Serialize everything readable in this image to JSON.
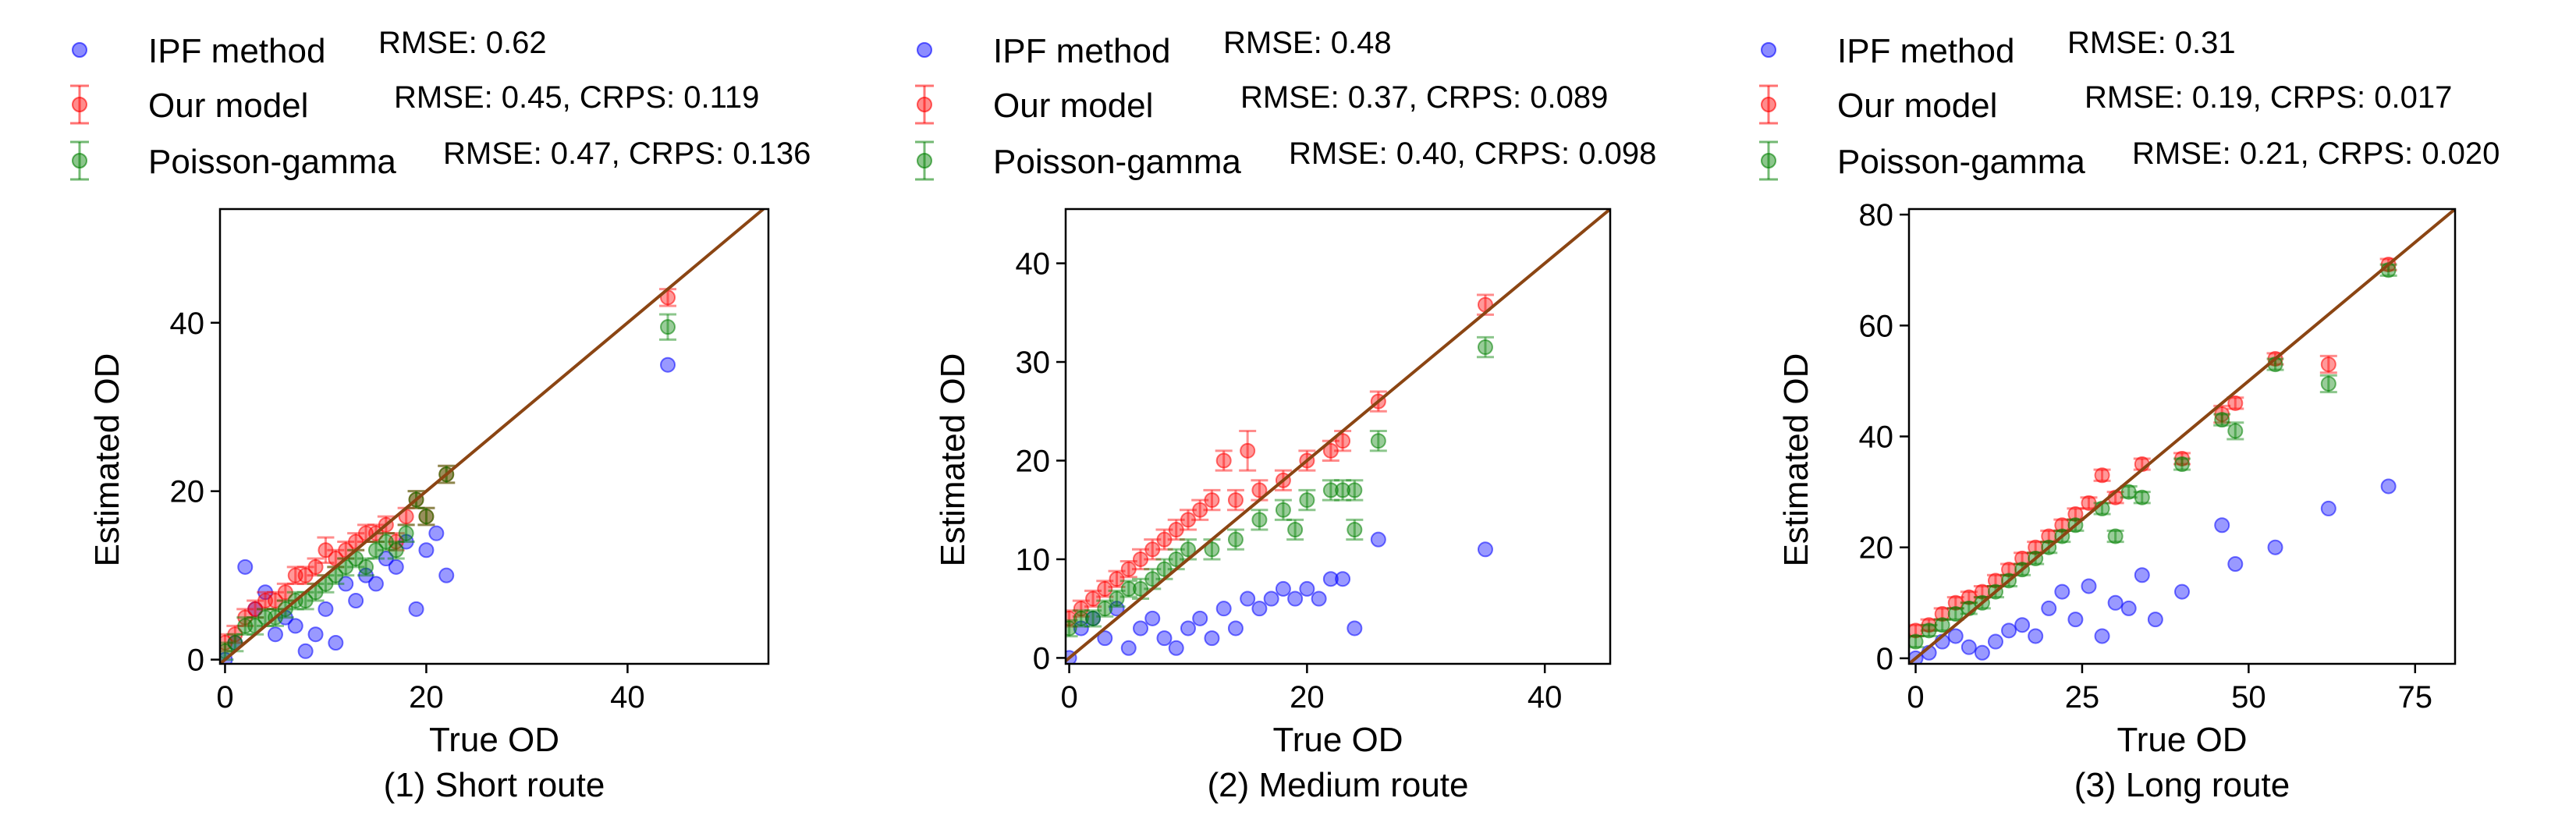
{
  "colors": {
    "ipf": "#0000ff",
    "ours": "#ff0000",
    "pg": "#008000",
    "diag": "#8b4513",
    "axis": "#000000"
  },
  "chart_data": [
    {
      "type": "scatter",
      "caption": "(1) Short route",
      "xlabel": "True OD",
      "ylabel": "Estimated OD",
      "xlim": [
        -0.5,
        54
      ],
      "ylim": [
        -0.5,
        53.5
      ],
      "xticks": [
        0,
        20,
        40
      ],
      "yticks": [
        0,
        20,
        40
      ],
      "legend": [
        {
          "name": "IPF method",
          "metric": "RMSE: 0.62"
        },
        {
          "name": "Our model",
          "metric": "RMSE: 0.45, CRPS: 0.119"
        },
        {
          "name": "Poisson-gamma",
          "metric": "RMSE: 0.47, CRPS: 0.136"
        }
      ],
      "series": [
        {
          "name": "IPF method",
          "points": [
            [
              0,
              0
            ],
            [
              1,
              2
            ],
            [
              2,
              11
            ],
            [
              3,
              6
            ],
            [
              4,
              8
            ],
            [
              5,
              3
            ],
            [
              6,
              5
            ],
            [
              7,
              4
            ],
            [
              8,
              1
            ],
            [
              9,
              3
            ],
            [
              10,
              6
            ],
            [
              11,
              2
            ],
            [
              12,
              9
            ],
            [
              13,
              7
            ],
            [
              14,
              10
            ],
            [
              15,
              9
            ],
            [
              16,
              12
            ],
            [
              17,
              11
            ],
            [
              18,
              14
            ],
            [
              19,
              6
            ],
            [
              20,
              13
            ],
            [
              21,
              15
            ],
            [
              22,
              10
            ],
            [
              44,
              35
            ]
          ]
        },
        {
          "name": "Our model",
          "points": [
            [
              0,
              2,
              1
            ],
            [
              1,
              3,
              1
            ],
            [
              2,
              5,
              1
            ],
            [
              3,
              6,
              1
            ],
            [
              4,
              7,
              1
            ],
            [
              5,
              7,
              1
            ],
            [
              6,
              8,
              1
            ],
            [
              7,
              10,
              1
            ],
            [
              8,
              10,
              1
            ],
            [
              9,
              11,
              1
            ],
            [
              10,
              13,
              1.5
            ],
            [
              11,
              12,
              1
            ],
            [
              12,
              13,
              1
            ],
            [
              13,
              14,
              1
            ],
            [
              14,
              15,
              1
            ],
            [
              15,
              15,
              1
            ],
            [
              16,
              16,
              1
            ],
            [
              17,
              14,
              1
            ],
            [
              18,
              17,
              1
            ],
            [
              19,
              19,
              1
            ],
            [
              20,
              17,
              1
            ],
            [
              22,
              22,
              1
            ],
            [
              44,
              43,
              1
            ]
          ]
        },
        {
          "name": "Poisson-gamma",
          "points": [
            [
              0,
              1,
              1
            ],
            [
              1,
              2,
              1
            ],
            [
              2,
              4,
              1
            ],
            [
              3,
              4,
              1
            ],
            [
              4,
              5,
              1
            ],
            [
              5,
              5,
              1
            ],
            [
              6,
              6,
              1
            ],
            [
              7,
              7,
              1
            ],
            [
              8,
              7,
              1
            ],
            [
              9,
              8,
              1
            ],
            [
              10,
              9,
              1
            ],
            [
              11,
              10,
              1
            ],
            [
              12,
              11,
              1
            ],
            [
              13,
              12,
              1
            ],
            [
              14,
              11,
              1
            ],
            [
              15,
              13,
              1
            ],
            [
              16,
              14,
              1
            ],
            [
              17,
              13,
              1
            ],
            [
              18,
              15,
              1
            ],
            [
              19,
              19,
              1
            ],
            [
              20,
              17,
              1
            ],
            [
              22,
              22,
              1
            ],
            [
              44,
              39.5,
              1.5
            ]
          ]
        }
      ]
    },
    {
      "type": "scatter",
      "caption": "(2) Medium route",
      "xlabel": "True OD",
      "ylabel": "Estimated OD",
      "xlim": [
        -0.3,
        45.5
      ],
      "ylim": [
        -0.6,
        45.5
      ],
      "xticks": [
        0,
        20,
        40
      ],
      "yticks": [
        0,
        10,
        20,
        30,
        40
      ],
      "legend": [
        {
          "name": "IPF method",
          "metric": "RMSE: 0.48"
        },
        {
          "name": "Our model",
          "metric": "RMSE: 0.37, CRPS: 0.089"
        },
        {
          "name": "Poisson-gamma",
          "metric": "RMSE: 0.40, CRPS: 0.098"
        }
      ],
      "series": [
        {
          "name": "IPF method",
          "points": [
            [
              0,
              0
            ],
            [
              1,
              3
            ],
            [
              2,
              4
            ],
            [
              3,
              2
            ],
            [
              4,
              5
            ],
            [
              5,
              1
            ],
            [
              6,
              3
            ],
            [
              7,
              4
            ],
            [
              8,
              2
            ],
            [
              9,
              1
            ],
            [
              10,
              3
            ],
            [
              11,
              4
            ],
            [
              12,
              2
            ],
            [
              13,
              5
            ],
            [
              14,
              3
            ],
            [
              15,
              6
            ],
            [
              16,
              5
            ],
            [
              17,
              6
            ],
            [
              18,
              7
            ],
            [
              19,
              6
            ],
            [
              20,
              7
            ],
            [
              21,
              6
            ],
            [
              22,
              8
            ],
            [
              23,
              8
            ],
            [
              24,
              3
            ],
            [
              26,
              12
            ],
            [
              35,
              11
            ]
          ]
        },
        {
          "name": "Our model",
          "points": [
            [
              0,
              4,
              0.8
            ],
            [
              1,
              5,
              0.8
            ],
            [
              2,
              6,
              0.8
            ],
            [
              3,
              7,
              0.8
            ],
            [
              4,
              8,
              0.8
            ],
            [
              5,
              9,
              0.8
            ],
            [
              6,
              10,
              1
            ],
            [
              7,
              11,
              1
            ],
            [
              8,
              12,
              1
            ],
            [
              9,
              13,
              1
            ],
            [
              10,
              14,
              1
            ],
            [
              11,
              15,
              1
            ],
            [
              12,
              16,
              1
            ],
            [
              13,
              20,
              1
            ],
            [
              15,
              21,
              2
            ],
            [
              14,
              16,
              1
            ],
            [
              16,
              17,
              1
            ],
            [
              18,
              18,
              1
            ],
            [
              20,
              20,
              1
            ],
            [
              22,
              21,
              1
            ],
            [
              23,
              22,
              1
            ],
            [
              26,
              26,
              1
            ],
            [
              35,
              35.8,
              1
            ]
          ]
        },
        {
          "name": "Poisson-gamma",
          "points": [
            [
              0,
              3,
              0.8
            ],
            [
              1,
              4,
              0.8
            ],
            [
              2,
              4,
              0.8
            ],
            [
              3,
              5,
              0.8
            ],
            [
              4,
              6,
              0.8
            ],
            [
              5,
              7,
              0.8
            ],
            [
              6,
              7,
              1
            ],
            [
              7,
              8,
              1
            ],
            [
              8,
              9,
              1
            ],
            [
              9,
              10,
              1
            ],
            [
              10,
              11,
              1
            ],
            [
              12,
              11,
              1
            ],
            [
              14,
              12,
              1
            ],
            [
              16,
              14,
              1
            ],
            [
              18,
              15,
              1
            ],
            [
              19,
              13,
              1
            ],
            [
              20,
              16,
              1
            ],
            [
              22,
              17,
              1
            ],
            [
              23,
              17,
              1
            ],
            [
              24,
              13,
              1
            ],
            [
              24,
              17,
              1
            ],
            [
              26,
              22,
              1
            ],
            [
              35,
              31.5,
              1
            ]
          ]
        }
      ]
    },
    {
      "type": "scatter",
      "caption": "(3) Long route",
      "xlabel": "True OD",
      "ylabel": "Estimated OD",
      "xlim": [
        -1,
        81
      ],
      "ylim": [
        -1,
        81
      ],
      "xticks": [
        0,
        25,
        50,
        75
      ],
      "yticks": [
        0,
        20,
        40,
        60,
        80
      ],
      "legend": [
        {
          "name": "IPF method",
          "metric": "RMSE: 0.31"
        },
        {
          "name": "Our model",
          "metric": "RMSE: 0.19, CRPS: 0.017"
        },
        {
          "name": "Poisson-gamma",
          "metric": "RMSE: 0.21, CRPS: 0.020"
        }
      ],
      "series": [
        {
          "name": "IPF method",
          "points": [
            [
              0,
              0
            ],
            [
              2,
              1
            ],
            [
              4,
              3
            ],
            [
              6,
              4
            ],
            [
              8,
              2
            ],
            [
              10,
              1
            ],
            [
              12,
              3
            ],
            [
              14,
              5
            ],
            [
              16,
              6
            ],
            [
              18,
              4
            ],
            [
              20,
              9
            ],
            [
              22,
              12
            ],
            [
              24,
              7
            ],
            [
              26,
              13
            ],
            [
              28,
              4
            ],
            [
              30,
              10
            ],
            [
              32,
              9
            ],
            [
              34,
              15
            ],
            [
              36,
              7
            ],
            [
              40,
              12
            ],
            [
              46,
              24
            ],
            [
              48,
              17
            ],
            [
              54,
              20
            ],
            [
              62,
              27
            ],
            [
              71,
              31
            ]
          ]
        },
        {
          "name": "Our model",
          "points": [
            [
              0,
              5,
              1
            ],
            [
              2,
              6,
              1
            ],
            [
              4,
              8,
              1
            ],
            [
              6,
              10,
              1
            ],
            [
              8,
              11,
              1
            ],
            [
              10,
              12,
              1
            ],
            [
              12,
              14,
              1
            ],
            [
              14,
              16,
              1
            ],
            [
              16,
              18,
              1
            ],
            [
              18,
              20,
              1
            ],
            [
              20,
              22,
              1
            ],
            [
              22,
              24,
              1
            ],
            [
              24,
              26,
              1
            ],
            [
              26,
              28,
              1
            ],
            [
              28,
              33,
              1
            ],
            [
              30,
              29,
              1
            ],
            [
              34,
              35,
              1
            ],
            [
              40,
              36,
              1
            ],
            [
              46,
              44,
              1.5
            ],
            [
              48,
              46,
              1
            ],
            [
              54,
              54,
              1
            ],
            [
              62,
              53,
              1.5
            ],
            [
              71,
              71,
              1
            ]
          ]
        },
        {
          "name": "Poisson-gamma",
          "points": [
            [
              0,
              3,
              1
            ],
            [
              2,
              5,
              1
            ],
            [
              4,
              6,
              1
            ],
            [
              6,
              8,
              1
            ],
            [
              8,
              9,
              1
            ],
            [
              10,
              10,
              1
            ],
            [
              12,
              12,
              1
            ],
            [
              14,
              14,
              1
            ],
            [
              16,
              16,
              1
            ],
            [
              18,
              18,
              1
            ],
            [
              20,
              20,
              1
            ],
            [
              22,
              22,
              1
            ],
            [
              24,
              24,
              1
            ],
            [
              28,
              27,
              1
            ],
            [
              30,
              22,
              1
            ],
            [
              32,
              30,
              1
            ],
            [
              34,
              29,
              1
            ],
            [
              40,
              35,
              1
            ],
            [
              46,
              43,
              1
            ],
            [
              48,
              41,
              1.5
            ],
            [
              54,
              53,
              1
            ],
            [
              62,
              49.5,
              1.5
            ],
            [
              71,
              70,
              1
            ]
          ]
        }
      ]
    }
  ]
}
